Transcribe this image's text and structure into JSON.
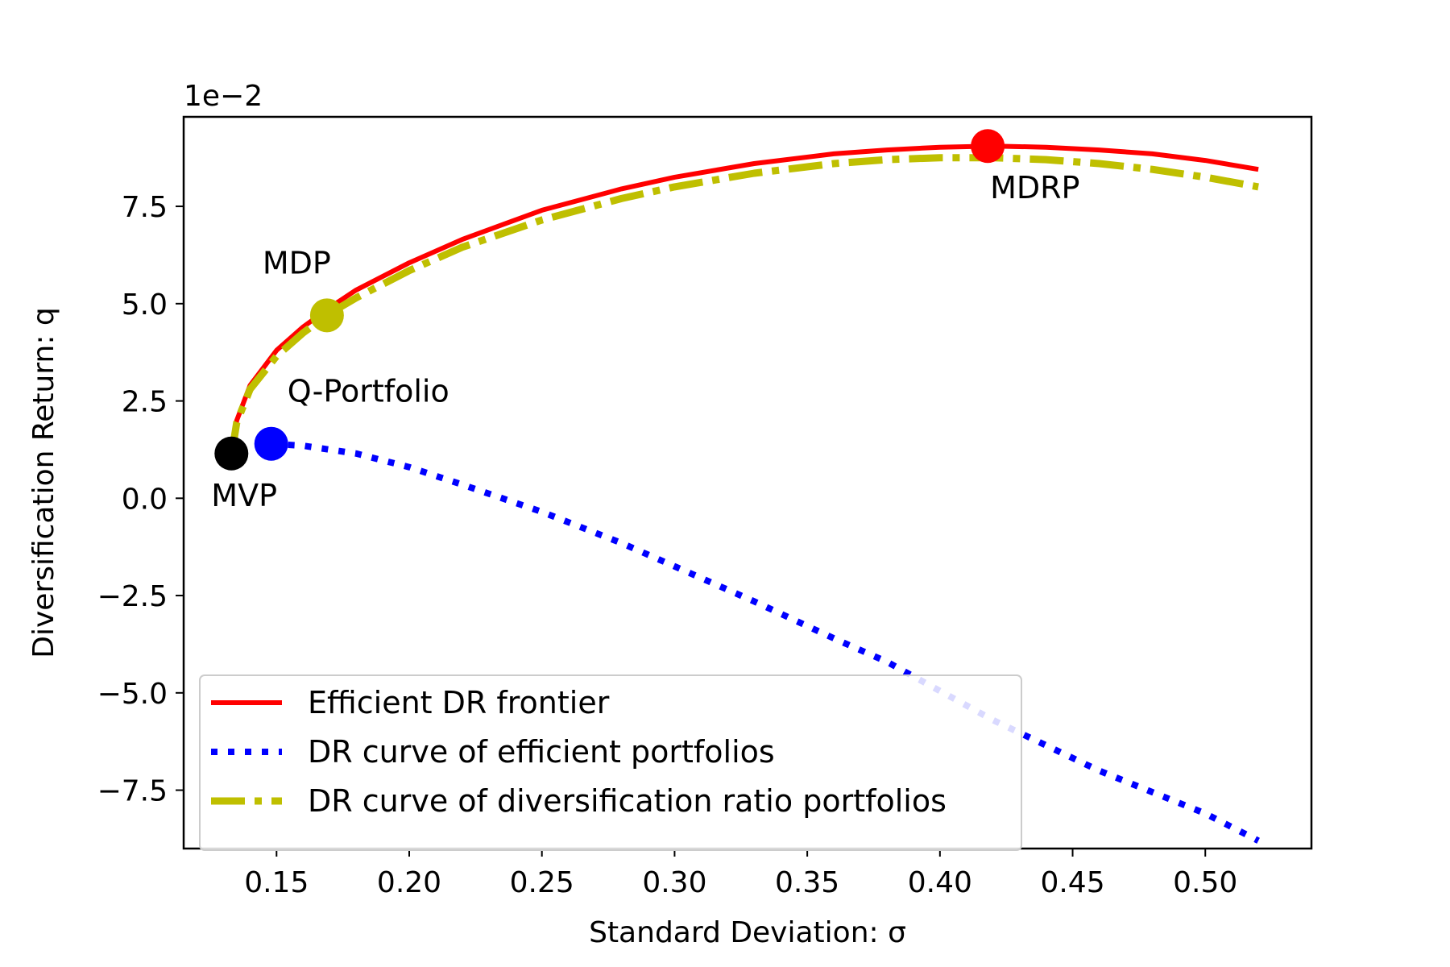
{
  "chart_data": {
    "type": "line",
    "title": "",
    "xlabel": "Standard Deviation: σ",
    "ylabel": "Diversification Return: q",
    "y_offset_label": "1e−2",
    "xlim": [
      0.115,
      0.54
    ],
    "ylim": [
      -9.0,
      9.8
    ],
    "xticks": [
      0.15,
      0.2,
      0.25,
      0.3,
      0.35,
      0.4,
      0.45,
      0.5
    ],
    "xtick_labels": [
      "0.15",
      "0.20",
      "0.25",
      "0.30",
      "0.35",
      "0.40",
      "0.45",
      "0.50"
    ],
    "yticks": [
      -7.5,
      -5.0,
      -2.5,
      0.0,
      2.5,
      5.0,
      7.5
    ],
    "ytick_labels": [
      "−7.5",
      "−5.0",
      "−2.5",
      "0.0",
      "2.5",
      "5.0",
      "7.5"
    ],
    "grid": false,
    "legend_position": "lower-left",
    "series": [
      {
        "name": "Efficient DR frontier",
        "color": "#ff0000",
        "style": "solid",
        "x": [
          0.133,
          0.135,
          0.14,
          0.15,
          0.16,
          0.17,
          0.18,
          0.2,
          0.22,
          0.25,
          0.28,
          0.3,
          0.33,
          0.36,
          0.38,
          0.4,
          0.42,
          0.44,
          0.46,
          0.48,
          0.5,
          0.52
        ],
        "y": [
          1.1,
          2.0,
          2.9,
          3.8,
          4.4,
          4.9,
          5.35,
          6.05,
          6.65,
          7.4,
          7.95,
          8.25,
          8.6,
          8.85,
          8.95,
          9.02,
          9.05,
          9.02,
          8.95,
          8.85,
          8.68,
          8.45
        ]
      },
      {
        "name": "DR curve of efficient portfolios",
        "color": "#0000ff",
        "style": "dotted",
        "x": [
          0.148,
          0.16,
          0.18,
          0.2,
          0.22,
          0.25,
          0.28,
          0.3,
          0.33,
          0.36,
          0.38,
          0.4,
          0.42,
          0.44,
          0.46,
          0.48,
          0.5,
          0.52
        ],
        "y": [
          1.4,
          1.35,
          1.15,
          0.8,
          0.35,
          -0.35,
          -1.15,
          -1.75,
          -2.65,
          -3.6,
          -4.2,
          -4.95,
          -5.7,
          -6.35,
          -7.0,
          -7.55,
          -8.1,
          -8.8
        ]
      },
      {
        "name": "DR curve of diversification ratio portfolios",
        "color": "#bfbf00",
        "style": "dash-dot",
        "x": [
          0.133,
          0.135,
          0.14,
          0.15,
          0.16,
          0.17,
          0.18,
          0.2,
          0.22,
          0.25,
          0.28,
          0.3,
          0.33,
          0.36,
          0.38,
          0.4,
          0.42,
          0.44,
          0.46,
          0.48,
          0.5,
          0.52
        ],
        "y": [
          1.1,
          1.95,
          2.8,
          3.65,
          4.25,
          4.75,
          5.15,
          5.85,
          6.45,
          7.15,
          7.7,
          8.0,
          8.35,
          8.6,
          8.7,
          8.75,
          8.75,
          8.7,
          8.6,
          8.45,
          8.25,
          8.0
        ]
      }
    ],
    "points": [
      {
        "label": "MVP",
        "x": 0.133,
        "y": 1.15,
        "color": "#000000",
        "label_side": "below-left"
      },
      {
        "label": "Q-Portfolio",
        "x": 0.148,
        "y": 1.4,
        "color": "#0000ff",
        "label_side": "above-right"
      },
      {
        "label": "MDP",
        "x": 0.169,
        "y": 4.7,
        "color": "#bfbf00",
        "label_side": "above-left"
      },
      {
        "label": "MDRP",
        "x": 0.418,
        "y": 9.05,
        "color": "#ff0000",
        "label_side": "below-right"
      }
    ]
  }
}
